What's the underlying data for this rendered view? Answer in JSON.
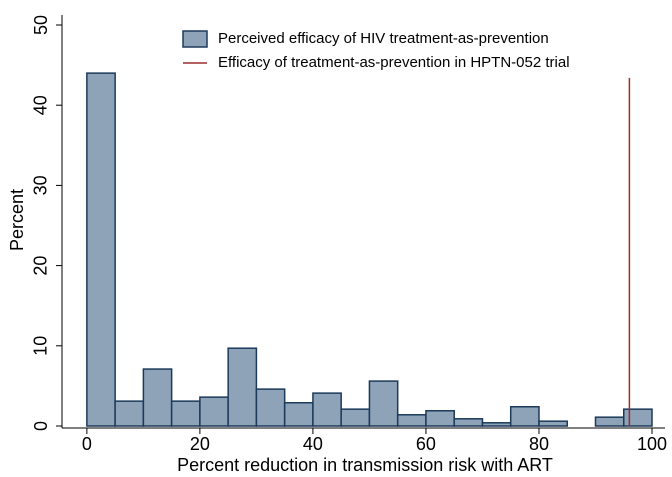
{
  "chart_data": {
    "type": "histogram",
    "x_label": "Percent reduction in transmission risk with ART",
    "y_label": "Percent",
    "bins": [
      0,
      5,
      10,
      15,
      20,
      25,
      30,
      35,
      40,
      45,
      50,
      55,
      60,
      65,
      70,
      75,
      80,
      85,
      90,
      95,
      100
    ],
    "series": [
      {
        "name": "Perceived efficacy of HIV treatment-as-prevention",
        "color": "#8ea2b8",
        "edgecolor": "#1c3a5a",
        "values": [
          44.0,
          3.1,
          7.1,
          3.1,
          3.6,
          9.7,
          4.6,
          2.9,
          4.1,
          2.1,
          5.6,
          1.4,
          1.9,
          0.9,
          0.4,
          2.4,
          0.6,
          0,
          1.1,
          2.1
        ]
      }
    ],
    "reference_line": {
      "name": "Efficacy of treatment-as-prevention in HPTN-052 trial",
      "color": "#9b2d2e",
      "x": 96,
      "top": 43.4
    },
    "xlim": [
      -4.4,
      102.3
    ],
    "ylim": [
      0,
      50
    ],
    "xticks": [
      0,
      20,
      40,
      60,
      80,
      100
    ],
    "yticks": [
      0,
      10,
      20,
      30,
      40,
      50
    ],
    "grid": false,
    "legend": "top"
  }
}
